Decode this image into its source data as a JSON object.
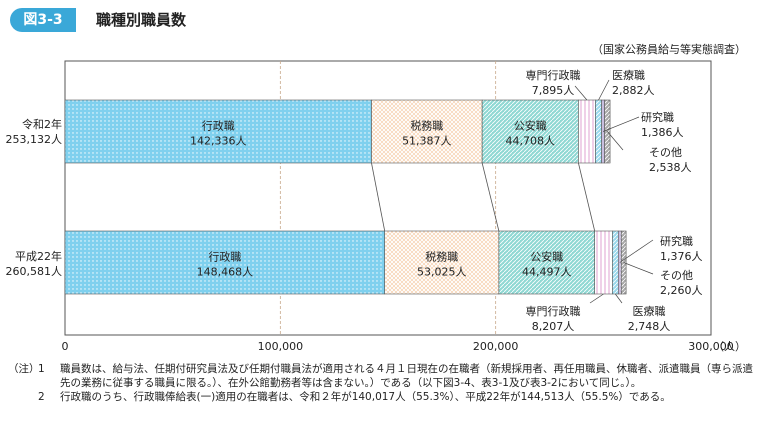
{
  "figure": {
    "number": "図3-3",
    "title": "職種別職員数",
    "source": "（国家公務員給与等実態調査）"
  },
  "colors": {
    "accent": "#3aa8d8",
    "gyosei": "#7fd0ee",
    "zeimu": "#f5c9a2",
    "koan": "#8fd8d3",
    "senmon": "#d889c7",
    "iryo": "#9ad9ec",
    "kenkyu": "#c9bedf",
    "sonota": "#a9a9a9"
  },
  "chart_data": {
    "type": "bar",
    "orientation": "horizontal",
    "stacked": true,
    "xlim": [
      0,
      300000
    ],
    "x_ticks": [
      "0",
      "100,000",
      "200,000",
      "300,000"
    ],
    "x_tick_values": [
      0,
      100000,
      200000,
      300000
    ],
    "x_unit": "（人）",
    "categories": [
      {
        "name": "令和2年",
        "total": "253,132人"
      },
      {
        "name": "平成22年",
        "total": "260,581人"
      }
    ],
    "series": [
      {
        "name": "行政職",
        "key": "gyosei",
        "values": [
          142336,
          148468
        ],
        "labels": [
          "142,336人",
          "148,468人"
        ]
      },
      {
        "name": "税務職",
        "key": "zeimu",
        "values": [
          51387,
          53025
        ],
        "labels": [
          "51,387人",
          "53,025人"
        ]
      },
      {
        "name": "公安職",
        "key": "koan",
        "values": [
          44708,
          44497
        ],
        "labels": [
          "44,708人",
          "44,497人"
        ]
      },
      {
        "name": "専門行政職",
        "key": "senmon",
        "values": [
          7895,
          8207
        ],
        "labels": [
          "7,895人",
          "8,207人"
        ]
      },
      {
        "name": "医療職",
        "key": "iryo",
        "values": [
          2882,
          2748
        ],
        "labels": [
          "2,882人",
          "2,748人"
        ]
      },
      {
        "name": "研究職",
        "key": "kenkyu",
        "values": [
          1386,
          1376
        ],
        "labels": [
          "1,386人",
          "1,376人"
        ]
      },
      {
        "name": "その他",
        "key": "sonota",
        "values": [
          2538,
          2260
        ],
        "labels": [
          "2,538人",
          "2,260人"
        ]
      }
    ],
    "grid": "vertical-dashed"
  },
  "notes": {
    "head": "（注）",
    "items": [
      {
        "num": "1",
        "text": "職員数は、給与法、任期付研究員法及び任期付職員法が適用される４月１日現在の在職者（新規採用者、再任用職員、休職者、派遣職員（専ら派遣先の業務に従事する職員に限る。）、在外公館勤務者等は含まない。）である（以下図3-4、表3-1及び表3-2において同じ。）。"
      },
      {
        "num": "2",
        "text": "行政職のうち、行政職俸給表(一)適用の在職者は、令和２年が140,017人（55.3%）、平成22年が144,513人（55.5%）である。"
      }
    ]
  }
}
